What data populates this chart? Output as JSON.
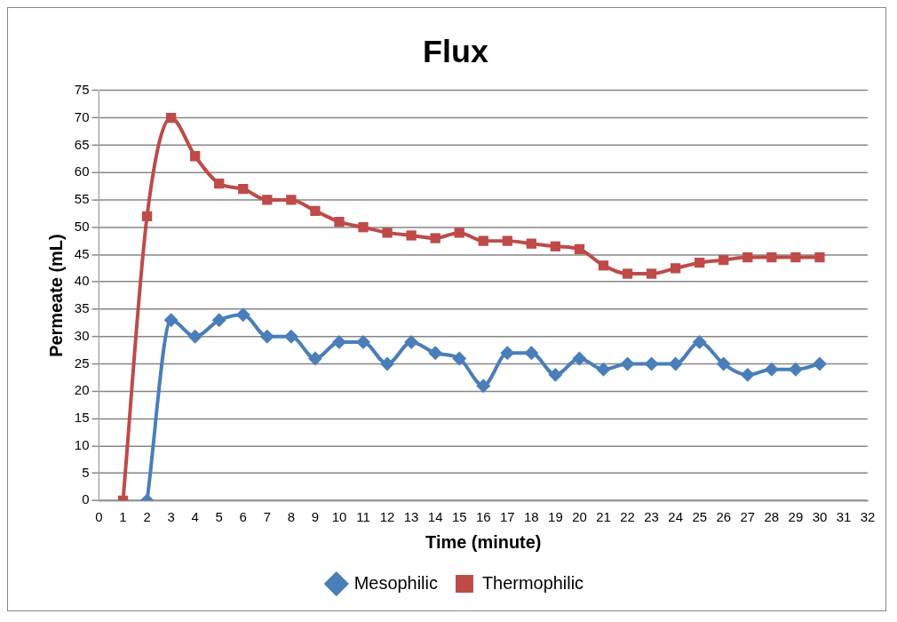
{
  "chart_data": {
    "type": "line",
    "title": "Flux",
    "xlabel": "Time (minute)",
    "ylabel": "Permeate (mL)",
    "xlim": [
      0,
      32
    ],
    "xticks": [
      0,
      1,
      2,
      3,
      4,
      5,
      6,
      7,
      8,
      9,
      10,
      11,
      12,
      13,
      14,
      15,
      16,
      17,
      18,
      19,
      20,
      21,
      22,
      23,
      24,
      25,
      26,
      27,
      28,
      29,
      30,
      31,
      32
    ],
    "ylim": [
      0,
      75
    ],
    "yticks": [
      0,
      5,
      10,
      15,
      20,
      25,
      30,
      35,
      40,
      45,
      50,
      55,
      60,
      65,
      70,
      75
    ],
    "grid": "y",
    "legend": "bottom",
    "series": [
      {
        "name": "Mesophilic",
        "color": "#4a7ebb",
        "marker": "diamond",
        "x": [
          2,
          3,
          4,
          5,
          6,
          7,
          8,
          9,
          10,
          11,
          12,
          13,
          14,
          15,
          16,
          17,
          18,
          19,
          20,
          21,
          22,
          23,
          24,
          25,
          26,
          27,
          28,
          29,
          30
        ],
        "values": [
          0,
          33,
          30,
          33,
          34,
          30,
          30,
          26,
          29,
          29,
          25,
          29,
          27,
          26,
          21,
          27,
          27,
          23,
          26,
          24,
          25,
          25,
          25,
          29,
          25,
          23,
          24,
          24,
          25
        ]
      },
      {
        "name": "Thermophilic",
        "color": "#be4b48",
        "marker": "square",
        "x": [
          1,
          2,
          3,
          4,
          5,
          6,
          7,
          8,
          9,
          10,
          11,
          12,
          13,
          14,
          15,
          16,
          17,
          18,
          19,
          20,
          21,
          22,
          23,
          24,
          25,
          26,
          27,
          28,
          29,
          30
        ],
        "values": [
          0,
          52,
          70,
          63,
          58,
          57,
          55,
          55,
          53,
          51,
          50,
          49,
          48.5,
          48,
          49,
          47.5,
          47.5,
          47,
          46.5,
          46,
          43,
          41.5,
          41.5,
          42.5,
          43.5,
          44,
          44.5,
          44.5,
          44.5,
          44.5
        ]
      }
    ]
  }
}
